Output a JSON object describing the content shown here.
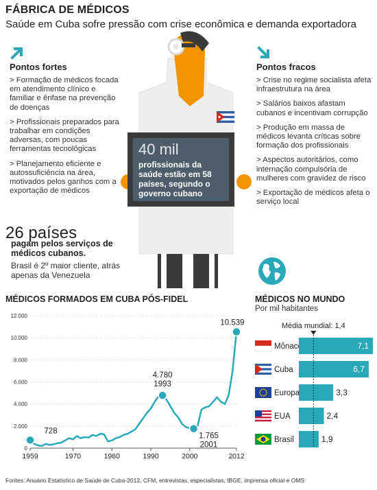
{
  "header": {
    "title": "FÁBRICA DE MÉDICOS",
    "subtitle": "Saúde em Cuba sofre pressão com crise econômica e demanda exportadora"
  },
  "strengths": {
    "heading": "Pontos fortes",
    "items": [
      "Formação de médicos focada em atendimento clínico e familiar e ênfase na prevenção de doenças",
      "Profissionais preparados para trabalhar em condições adversas, com poucas ferramentas tecnológicas",
      "Planejamento eficiente e autossuficiência na área, motivados pelos ganhos com a exportação de médicos"
    ]
  },
  "weaknesses": {
    "heading": "Pontos fracos",
    "items": [
      "Crise no regime socialista afeta infraestrutura na área",
      "Salários baixos afastam cubanos e incentivam corrupção",
      "Produção em massa de médicos levanta críticas sobre formação dos profissionais",
      "Aspectos autoritários, como internação compulsória de mulheres com gravidez de risco",
      "Exportação de médicos afeta o serviço local"
    ]
  },
  "sign": {
    "number": "40 mil",
    "text": "profissionais da saúde estão em 58 países, segundo o governo cubano"
  },
  "countries_paying": {
    "number": "26 países",
    "bold_text": "pagam pelos serviços de médicos cubanos.",
    "detail": "Brasil é 2º maior cliente, atrás apenas da Venezuela"
  },
  "colors": {
    "accent": "#29a8ba",
    "orange": "#f29300",
    "dark": "#3a3a3a",
    "sign_bg": "#4e5d6c"
  },
  "chart_data": [
    {
      "type": "line",
      "title": "MÉDICOS FORMADOS EM CUBA PÓS-FIDEL",
      "x_ticks": [
        "1959",
        "1970",
        "1980",
        "1990",
        "2000",
        "2012"
      ],
      "y_ticks": [
        "0",
        "2.000",
        "4.000",
        "6.000",
        "8.000",
        "10.000",
        "12.000"
      ],
      "ylim": [
        0,
        12000
      ],
      "xlim": [
        1959,
        2012
      ],
      "grid": true,
      "series": [
        {
          "x": [
            1959,
            1960,
            1961,
            1962,
            1963,
            1964,
            1965,
            1966,
            1967,
            1968,
            1969,
            1970,
            1971,
            1972,
            1973,
            1974,
            1975,
            1976,
            1977,
            1978,
            1979,
            1980,
            1981,
            1982,
            1983,
            1984,
            1985,
            1986,
            1987,
            1988,
            1989,
            1990,
            1991,
            1992,
            1993,
            1994,
            1995,
            1996,
            1997,
            1998,
            1999,
            2000,
            2001,
            2002,
            2003,
            2004,
            2005,
            2006,
            2007,
            2008,
            2009,
            2010,
            2011,
            2012
          ],
          "y": [
            728,
            400,
            250,
            200,
            380,
            300,
            350,
            450,
            500,
            700,
            900,
            800,
            1100,
            900,
            1000,
            950,
            1200,
            1100,
            1300,
            1250,
            600,
            700,
            900,
            1000,
            1200,
            1300,
            1500,
            1700,
            2200,
            2700,
            3200,
            3600,
            4200,
            4700,
            4780,
            4400,
            3800,
            3200,
            2800,
            2200,
            1900,
            1800,
            1765,
            2000,
            3500,
            3700,
            3800,
            4200,
            4600,
            4200,
            4000,
            4800,
            7000,
            10539
          ]
        }
      ],
      "labels": [
        {
          "value": "728",
          "x": 1959,
          "y": 728
        },
        {
          "value": "4.780",
          "sub": "1993",
          "x": 1993,
          "y": 4780
        },
        {
          "value": "1.765",
          "sub": "2001",
          "x": 2001,
          "y": 1765
        },
        {
          "value": "10.539",
          "x": 2012,
          "y": 10539
        }
      ]
    },
    {
      "type": "bar",
      "title": "MÉDICOS NO MUNDO",
      "subtitle": "Por mil habitantes",
      "reference": {
        "label": "Média mundial: 1,4",
        "value": 1.4
      },
      "categories": [
        "Mônaco",
        "Cuba",
        "Europa",
        "EUA",
        "Brasil"
      ],
      "values": [
        7.1,
        6.7,
        3.3,
        2.4,
        1.9
      ],
      "value_labels": [
        "7,1",
        "6,7",
        "3,3",
        "2,4",
        "1,9"
      ],
      "flags": [
        "monaco-flag",
        "cuba-flag",
        "eu-flag",
        "usa-flag",
        "brazil-flag"
      ]
    }
  ],
  "footer": "Fontes: Anuário Estatístico de Saúde de Cuba-2012, CFM, entrevistas, especialistas, IBGE, imprensa oficial e OMS"
}
